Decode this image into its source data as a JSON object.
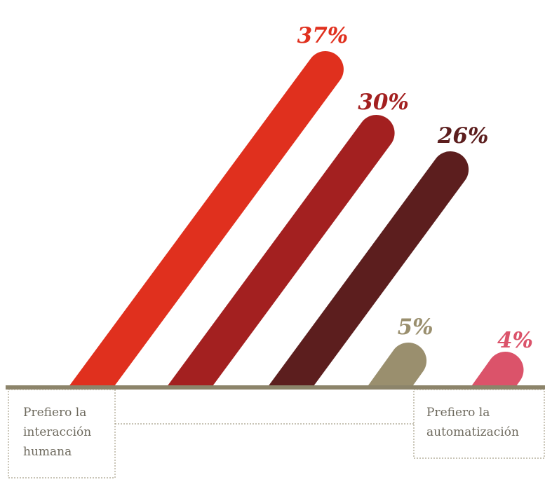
{
  "chart_data": {
    "type": "bar",
    "title": "",
    "xlabel": "",
    "ylabel": "",
    "ylim": [
      0,
      37
    ],
    "grid": false,
    "legend": "none",
    "categories": [
      "",
      "",
      "",
      "",
      ""
    ],
    "values": [
      37,
      30,
      26,
      5,
      4
    ],
    "data_labels": [
      "37%",
      "30%",
      "26%",
      "5%",
      "4%"
    ],
    "colors": [
      "#e0301e",
      "#a32020",
      "#5c1e1e",
      "#9a8f6e",
      "#db536a"
    ],
    "axis_color": "#8c846a",
    "scale_labels": {
      "left": [
        "Prefiero la",
        "interacción",
        "humana"
      ],
      "right": [
        "Prefiero la",
        "automatización"
      ]
    }
  }
}
